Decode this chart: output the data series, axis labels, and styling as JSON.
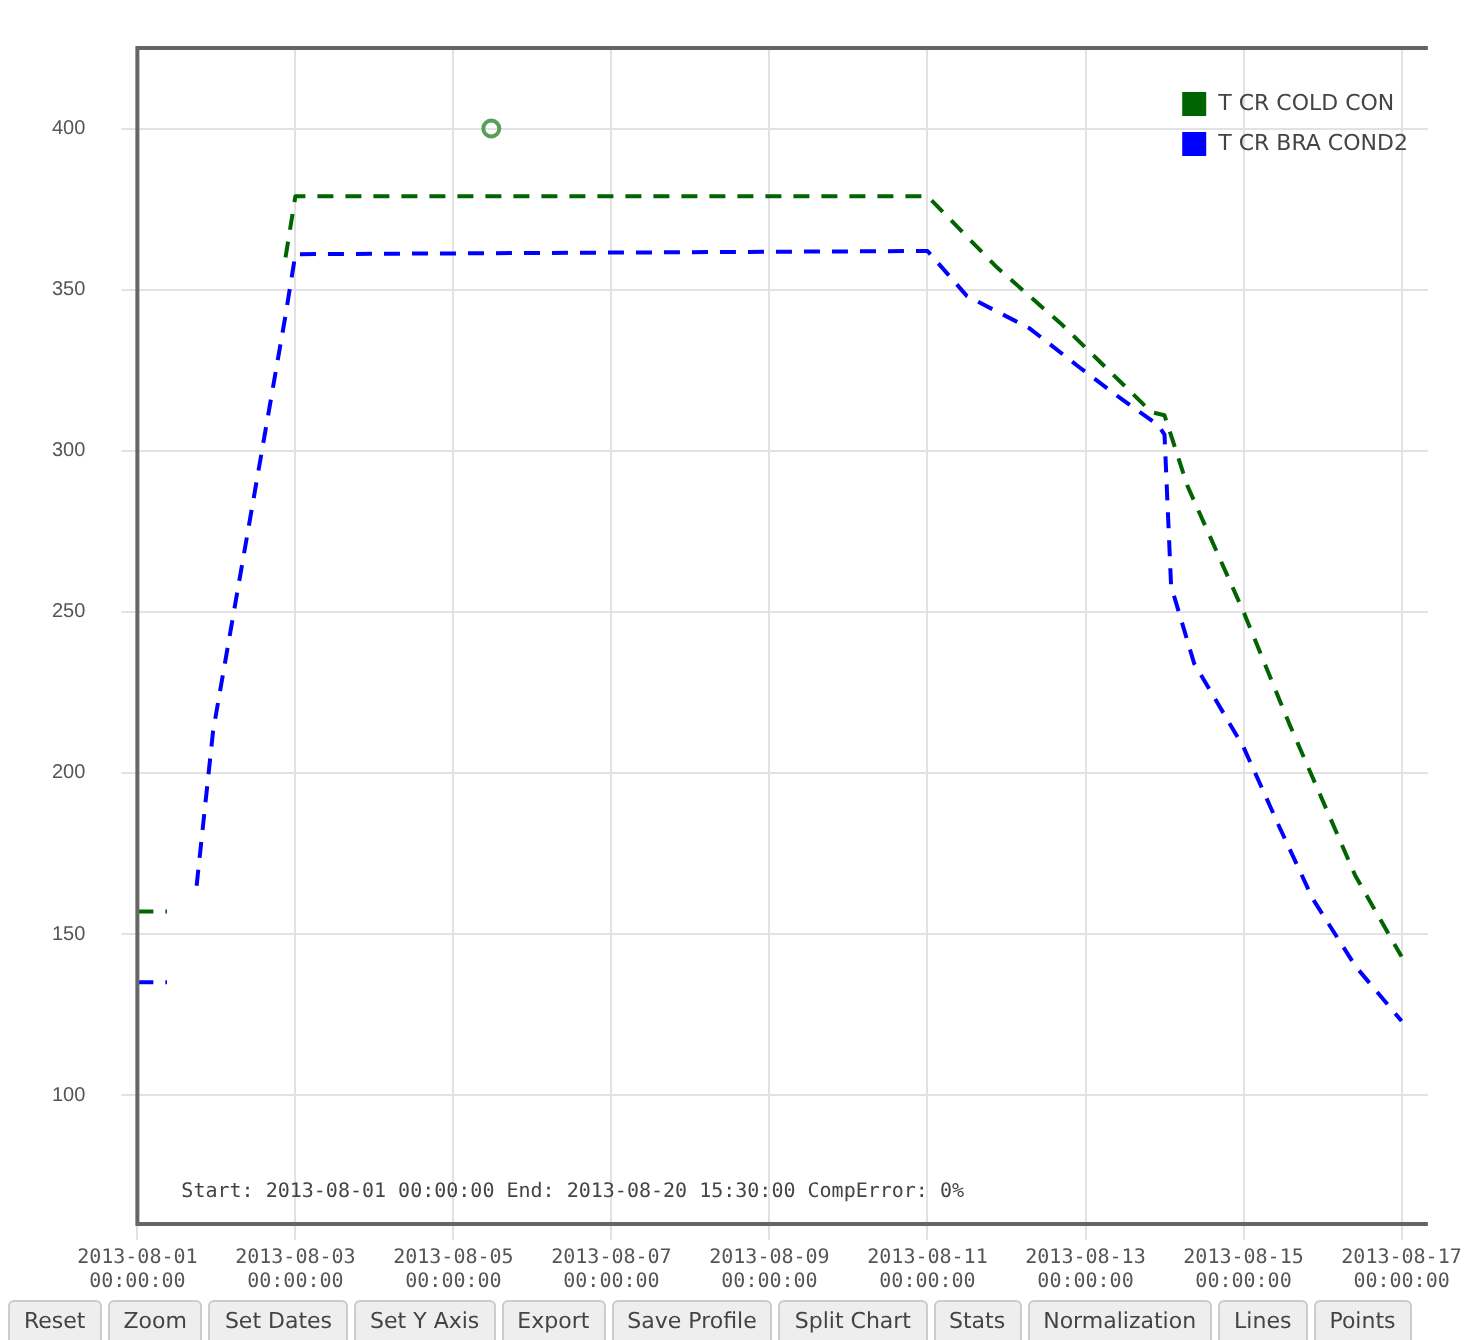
{
  "chart_data": {
    "type": "line",
    "series": [
      {
        "name": "T CR COLD CON",
        "color": "#006400",
        "x": [
          "2013-08-01T00:00",
          "2013-08-01T09:00",
          "2013-08-01T10:00",
          "2013-08-02T21:00",
          "2013-08-03T00:00",
          "2013-08-11T00:00",
          "2013-08-11T21:00",
          "2013-08-12T17:00",
          "2013-08-13T20:00",
          "2013-08-14T00:00",
          "2013-08-14T07:00",
          "2013-08-15T00:00",
          "2013-08-15T14:00",
          "2013-08-16T10:00",
          "2013-08-17T00:00"
        ],
        "values": [
          157,
          157,
          null,
          360,
          379,
          379,
          357,
          339,
          312,
          311,
          289,
          250,
          215,
          168,
          143
        ]
      },
      {
        "name": "T CR BRA COND2",
        "color": "#0000ff",
        "x": [
          "2013-08-01T00:00",
          "2013-08-01T09:00",
          "2013-08-01T10:00",
          "2013-08-01T18:00",
          "2013-08-01T23:00",
          "2013-08-02T21:00",
          "2013-08-03T00:00",
          "2013-08-11T00:00",
          "2013-08-11T12:00",
          "2013-08-12T07:00",
          "2013-08-12T22:00",
          "2013-08-13T11:00",
          "2013-08-13T22:00",
          "2013-08-14T00:00",
          "2013-08-14T02:00",
          "2013-08-14T09:00",
          "2013-08-15T00:00",
          "2013-08-15T11:00",
          "2013-08-15T21:00",
          "2013-08-16T10:00",
          "2013-08-17T00:00"
        ],
        "values": [
          135,
          135,
          null,
          165,
          213,
          342,
          361,
          362,
          348,
          338,
          326,
          316,
          308,
          305,
          258,
          234,
          208,
          183,
          161,
          140,
          123
        ]
      },
      {
        "type": "scatter",
        "color": "#5a9e5a",
        "x": [
          "2013-08-05T11:30"
        ],
        "values": [
          400
        ]
      }
    ],
    "xlim": [
      "2013-08-01",
      "2013-08-17T08:00"
    ],
    "xticks": [
      {
        "value": "2013-08-01",
        "label": "2013-08-01 00:00:00"
      },
      {
        "value": "2013-08-03",
        "label": "2013-08-03 00:00:00"
      },
      {
        "value": "2013-08-05",
        "label": "2013-08-05 00:00:00"
      },
      {
        "value": "2013-08-07",
        "label": "2013-08-07 00:00:00"
      },
      {
        "value": "2013-08-09",
        "label": "2013-08-09 00:00:00"
      },
      {
        "value": "2013-08-11",
        "label": "2013-08-11 00:00:00"
      },
      {
        "value": "2013-08-13",
        "label": "2013-08-13 00:00:00"
      },
      {
        "value": "2013-08-15",
        "label": "2013-08-15 00:00:00"
      },
      {
        "value": "2013-08-17",
        "label": "2013-08-17 00:00:00"
      }
    ],
    "ylim": [
      60,
      425
    ],
    "yticks": [
      100,
      150,
      200,
      250,
      300,
      350,
      400
    ],
    "grid": true,
    "legend": "top right",
    "line_style": "dashed",
    "annotations": [
      "Start: 2013-08-01 00:00:00 End: 2013-08-20 15:30:00 CompError: 0%",
      "Reset",
      "Zoom",
      "Set Dates",
      "Set Y Axis",
      "Export",
      "Save Profile",
      "Split Chart",
      "Stats",
      "Normalization",
      "Lines",
      "Points"
    ]
  }
}
